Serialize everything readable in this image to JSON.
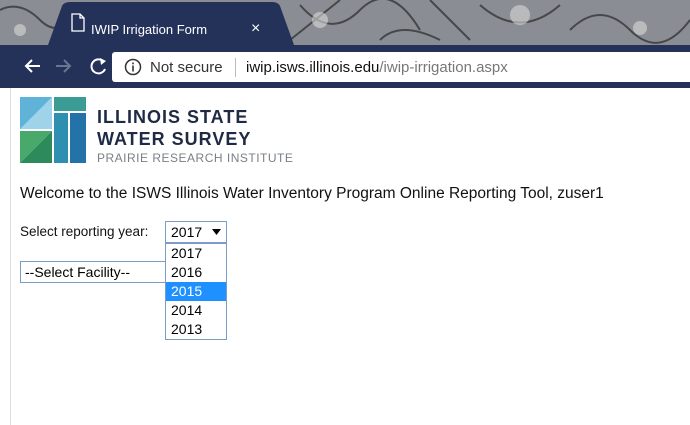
{
  "tab": {
    "title": "IWIP Irrigation Form",
    "close": "×"
  },
  "address_bar": {
    "security": "Not secure",
    "host": "iwip.isws.illinois.edu",
    "path": "/iwip-irrigation.aspx"
  },
  "logo": {
    "line1": "ILLINOIS STATE",
    "line2": "WATER SURVEY",
    "line3": "PRAIRIE RESEARCH INSTITUTE"
  },
  "welcome": "Welcome to the ISWS Illinois Water Inventory Program Online Reporting Tool, zuser1",
  "year_select": {
    "label": "Select reporting year:",
    "selected": "2017",
    "options": [
      "2017",
      "2016",
      "2015",
      "2014",
      "2013"
    ],
    "highlighted_option": 2
  },
  "facility_select": {
    "placeholder": "--Select Facility--"
  }
}
